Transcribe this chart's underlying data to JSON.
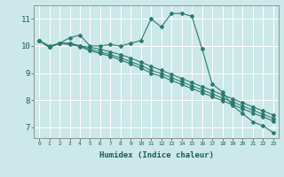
{
  "xlabel": "Humidex (Indice chaleur)",
  "background_color": "#cce8e8",
  "grid_color": "#ffffff",
  "line_color": "#2a7a6e",
  "xlim": [
    -0.5,
    23.5
  ],
  "ylim": [
    6.6,
    11.5
  ],
  "xticks": [
    0,
    1,
    2,
    3,
    4,
    5,
    6,
    7,
    8,
    9,
    10,
    11,
    12,
    13,
    14,
    15,
    16,
    17,
    18,
    19,
    20,
    21,
    22,
    23
  ],
  "yticks": [
    7,
    8,
    9,
    10,
    11
  ],
  "line1_x": [
    0,
    1,
    2,
    3,
    4,
    5,
    6,
    7,
    8,
    9,
    10,
    11,
    12,
    13,
    14,
    15,
    16,
    17,
    18,
    19,
    20,
    21,
    22,
    23
  ],
  "line1_y": [
    10.2,
    10.0,
    10.1,
    10.3,
    10.4,
    10.0,
    10.0,
    10.05,
    10.0,
    10.1,
    10.2,
    11.0,
    10.7,
    11.2,
    11.2,
    11.1,
    9.9,
    8.6,
    8.3,
    7.8,
    7.5,
    7.2,
    7.05,
    6.8
  ],
  "line2_x": [
    0,
    1,
    2,
    3,
    4,
    5,
    6,
    7,
    8,
    9,
    10,
    11,
    12,
    13,
    14,
    15,
    16,
    17,
    18,
    19,
    20,
    21,
    22,
    23
  ],
  "line2_y": [
    10.2,
    9.95,
    10.1,
    10.1,
    10.0,
    9.95,
    9.88,
    9.78,
    9.68,
    9.55,
    9.4,
    9.25,
    9.1,
    8.95,
    8.8,
    8.65,
    8.5,
    8.35,
    8.2,
    8.05,
    7.9,
    7.75,
    7.6,
    7.45
  ],
  "line3_x": [
    0,
    1,
    2,
    3,
    4,
    5,
    6,
    7,
    8,
    9,
    10,
    11,
    12,
    13,
    14,
    15,
    16,
    17,
    18,
    19,
    20,
    21,
    22,
    23
  ],
  "line3_y": [
    10.2,
    9.95,
    10.1,
    10.1,
    10.0,
    9.88,
    9.78,
    9.68,
    9.56,
    9.42,
    9.28,
    9.1,
    8.98,
    8.83,
    8.68,
    8.53,
    8.38,
    8.23,
    8.08,
    7.93,
    7.78,
    7.63,
    7.48,
    7.33
  ],
  "line4_x": [
    0,
    1,
    2,
    3,
    4,
    5,
    6,
    7,
    8,
    9,
    10,
    11,
    12,
    13,
    14,
    15,
    16,
    17,
    18,
    19,
    20,
    21,
    22,
    23
  ],
  "line4_y": [
    10.2,
    9.95,
    10.1,
    10.05,
    9.98,
    9.82,
    9.72,
    9.62,
    9.48,
    9.34,
    9.18,
    9.0,
    8.88,
    8.73,
    8.58,
    8.43,
    8.28,
    8.13,
    7.98,
    7.83,
    7.68,
    7.53,
    7.38,
    7.23
  ]
}
